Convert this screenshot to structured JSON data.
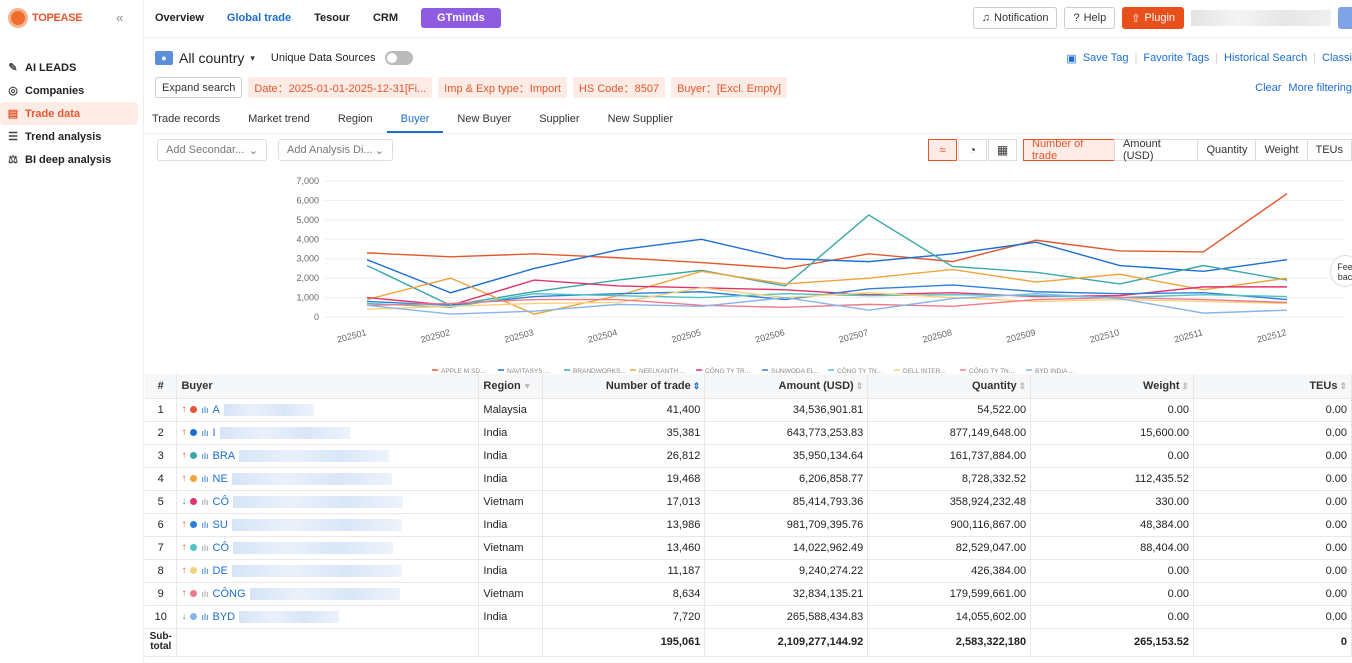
{
  "brand": {
    "name": "TOPEASE"
  },
  "sidebar": {
    "items": [
      {
        "label": "AI LEADS",
        "icon": "ai-leads-icon",
        "glyph": "✎"
      },
      {
        "label": "Companies",
        "icon": "companies-icon",
        "glyph": "◎"
      },
      {
        "label": "Trade data",
        "icon": "trade-data-icon",
        "glyph": "▤",
        "active": true
      },
      {
        "label": "Trend analysis",
        "icon": "trend-icon",
        "glyph": "☰"
      },
      {
        "label": "BI deep analysis",
        "icon": "bi-icon",
        "glyph": "⚖"
      }
    ]
  },
  "topnav": {
    "overview": "Overview",
    "global_trade": "Global trade",
    "tesour": "Tesour",
    "crm": "CRM",
    "gtminds": "GTminds"
  },
  "topright": {
    "notification": "Notification",
    "help": "Help",
    "plugin": "Plugin"
  },
  "filters": {
    "country": "All country",
    "unique_sources": "Unique Data Sources",
    "expand": "Expand search",
    "chips": [
      "Date：2025-01-01-2025-12-31[Fi...",
      "Imp & Exp type：Import",
      "HS Code：8507",
      "Buyer：[Excl. Empty]"
    ],
    "links": [
      "Save Tag",
      "Favorite Tags",
      "Historical Search",
      "Classi"
    ],
    "clear": "Clear",
    "more": "More filtering"
  },
  "tabs": [
    "Trade records",
    "Market trend",
    "Region",
    "Buyer",
    "New Buyer",
    "Supplier",
    "New Supplier"
  ],
  "toolbar": {
    "secondary": "Add Secondar...",
    "analysis": "Add Analysis Di...",
    "metrics": [
      "Number of trade",
      "Amount (USD)",
      "Quantity",
      "Weight",
      "TEUs"
    ]
  },
  "feedback": "Fee bac",
  "chart_data": {
    "type": "line",
    "categories": [
      "202501",
      "202502",
      "202503",
      "202504",
      "202505",
      "202506",
      "202507",
      "202508",
      "202509",
      "202510",
      "202511",
      "202512"
    ],
    "ylim": [
      0,
      7000
    ],
    "yticks": [
      "7,000",
      "6,000",
      "5,000",
      "4,000",
      "3,000",
      "2,000",
      "1,000",
      "0"
    ],
    "series": [
      {
        "name": "APPLE M SD...",
        "color": "#e4572e",
        "values": [
          3300,
          3100,
          3250,
          3050,
          2800,
          2500,
          3250,
          2850,
          3950,
          3400,
          3350,
          6350
        ]
      },
      {
        "name": "NAVITASYS ...",
        "color": "#1c6ed4",
        "values": [
          2950,
          1250,
          2500,
          3450,
          4000,
          3000,
          2850,
          3250,
          3850,
          2650,
          2350,
          2950
        ]
      },
      {
        "name": "BRANDWORKS...",
        "color": "#3aa7a9",
        "values": [
          2650,
          600,
          1300,
          1900,
          2400,
          1600,
          5250,
          2600,
          2300,
          1700,
          2650,
          1900
        ]
      },
      {
        "name": "NEELKANTH ...",
        "color": "#f2a33a",
        "values": [
          900,
          2000,
          150,
          1100,
          2350,
          1700,
          2000,
          2450,
          1800,
          2200,
          1400,
          2000
        ]
      },
      {
        "name": "CÔNG TY TR...",
        "color": "#e0336b",
        "values": [
          1000,
          600,
          1900,
          1600,
          1500,
          1400,
          1150,
          1250,
          1050,
          1100,
          1550,
          1550
        ]
      },
      {
        "name": "SUNWODA EL...",
        "color": "#2f7fd9",
        "values": [
          800,
          600,
          1050,
          1200,
          1300,
          900,
          1450,
          1650,
          1300,
          1200,
          1250,
          900
        ]
      },
      {
        "name": "CÔNG TY TN...",
        "color": "#4ec3c3",
        "values": [
          700,
          500,
          1200,
          1100,
          1000,
          1200,
          1100,
          1150,
          1100,
          1000,
          1150,
          1050
        ]
      },
      {
        "name": "DELL INTER...",
        "color": "#f7d27a",
        "values": [
          400,
          550,
          700,
          750,
          1500,
          1000,
          1250,
          1000,
          800,
          900,
          800,
          700
        ]
      },
      {
        "name": "CÔNG TY TN...",
        "color": "#f07a8a",
        "values": [
          600,
          700,
          900,
          900,
          600,
          500,
          650,
          550,
          900,
          1000,
          900,
          750
        ]
      },
      {
        "name": "BYD INDIA ...",
        "color": "#87b5ea",
        "values": [
          600,
          150,
          300,
          650,
          550,
          1000,
          350,
          950,
          1200,
          950,
          200,
          350
        ]
      }
    ]
  },
  "table": {
    "headers": {
      "idx": "#",
      "buyer": "Buyer",
      "region": "Region",
      "trades": "Number of trade",
      "amount": "Amount (USD)",
      "quantity": "Quantity",
      "weight": "Weight",
      "teus": "TEUs"
    },
    "rows": [
      {
        "idx": "1",
        "trend": "up",
        "dot": "#e4572e",
        "prefix": "A",
        "blur": 90,
        "region": "Malaysia",
        "trades": "41,400",
        "amount": "34,536,901.81",
        "quantity": "54,522.00",
        "weight": "0.00",
        "teus": "0.00"
      },
      {
        "idx": "2",
        "trend": "up",
        "dot": "#1c6ed4",
        "prefix": "I",
        "blur": 130,
        "region": "India",
        "trades": "35,381",
        "amount": "643,773,253.83",
        "quantity": "877,149,648.00",
        "weight": "15,600.00",
        "teus": "0.00"
      },
      {
        "idx": "3",
        "trend": "up",
        "dot": "#3aa7a9",
        "prefix": "BRA",
        "blur": 150,
        "region": "India",
        "trades": "26,812",
        "amount": "35,950,134.64",
        "quantity": "161,737,884.00",
        "weight": "0.00",
        "teus": "0.00"
      },
      {
        "idx": "4",
        "trend": "up",
        "dot": "#f2a33a",
        "prefix": "NE",
        "blur": 160,
        "region": "India",
        "trades": "19,468",
        "amount": "6,206,858.77",
        "quantity": "8,728,332.52",
        "weight": "112,435.52",
        "teus": "0.00"
      },
      {
        "idx": "5",
        "trend": "down",
        "dot": "#e0336b",
        "prefix": "CÔ",
        "blur": 170,
        "region": "Vietnam",
        "trades": "17,013",
        "amount": "85,414,793.36",
        "quantity": "358,924,232.48",
        "weight": "330.00",
        "teus": "0.00"
      },
      {
        "idx": "6",
        "trend": "up",
        "dot": "#2f7fd9",
        "prefix": "SU",
        "blur": 170,
        "region": "India",
        "trades": "13,986",
        "amount": "981,709,395.76",
        "quantity": "900,116,867.00",
        "weight": "48,384.00",
        "teus": "0.00"
      },
      {
        "idx": "7",
        "trend": "up",
        "dot": "#4ec3c3",
        "prefix": "CÔ",
        "blur": 160,
        "region": "Vietnam",
        "trades": "13,460",
        "amount": "14,022,962.49",
        "quantity": "82,529,047.00",
        "weight": "88,404.00",
        "teus": "0.00"
      },
      {
        "idx": "8",
        "trend": "up",
        "dot": "#f7d27a",
        "prefix": "DE",
        "blur": 170,
        "region": "India",
        "trades": "11,187",
        "amount": "9,240,274.22",
        "quantity": "426,384.00",
        "weight": "0.00",
        "teus": "0.00"
      },
      {
        "idx": "9",
        "trend": "up",
        "dot": "#f07a8a",
        "prefix": "CÔNG",
        "blur": 150,
        "region": "Vietnam",
        "trades": "8,634",
        "amount": "32,834,135.21",
        "quantity": "179,599,661.00",
        "weight": "0.00",
        "teus": "0.00"
      },
      {
        "idx": "10",
        "trend": "down",
        "dot": "#87b5ea",
        "prefix": "BYD",
        "blur": 100,
        "region": "India",
        "trades": "7,720",
        "amount": "265,588,434.83",
        "quantity": "14,055,602.00",
        "weight": "0.00",
        "teus": "0.00"
      }
    ],
    "subtotal": {
      "label": "Sub-total",
      "trades": "195,061",
      "amount": "2,109,277,144.92",
      "quantity": "2,583,322,180",
      "weight": "265,153.52",
      "teus": "0"
    }
  }
}
